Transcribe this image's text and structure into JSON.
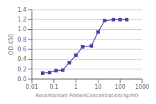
{
  "chart_data": {
    "type": "line",
    "x": [
      0.031,
      0.063,
      0.125,
      0.25,
      0.5,
      1.0,
      2.0,
      5.0,
      10.0,
      20.0,
      50.0,
      100.0,
      200.0
    ],
    "values": [
      0.12,
      0.13,
      0.17,
      0.18,
      0.33,
      0.48,
      0.65,
      0.67,
      0.95,
      1.18,
      1.2,
      1.2,
      1.2
    ],
    "color": "#4444aa",
    "marker": "square",
    "xlabel": "Recombinant ProteinConcentration(ng/ml)",
    "ylabel": "OD 450",
    "log": "x",
    "xlim": [
      0.01,
      1000
    ],
    "xticks": [
      0.01,
      0.1,
      1,
      10,
      100,
      1000
    ],
    "ylim": [
      0,
      1.4
    ],
    "yticks": [
      {
        "value": 0,
        "label": "0.0"
      },
      0.2,
      0.4,
      0.6,
      0.8,
      {
        "value": 1,
        "label": "1.0"
      },
      1.2,
      1.4
    ],
    "grid": "y"
  }
}
